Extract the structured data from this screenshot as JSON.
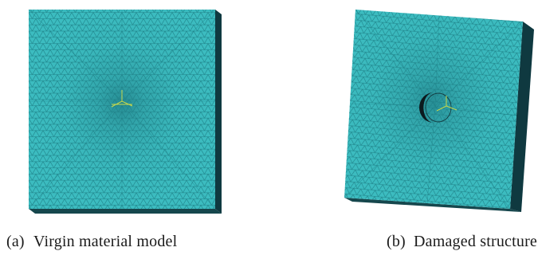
{
  "colors": {
    "mesh_fill": "#3cbcc0",
    "mesh_line": "#1d7f86",
    "edge_dark": "#0f3940",
    "axis_marker": "#c8d84a",
    "hole": "#0c1a1e"
  },
  "panels": [
    {
      "tag": "(a)",
      "caption": "Virgin material model"
    },
    {
      "tag": "(b)",
      "caption": "Damaged structure"
    }
  ]
}
